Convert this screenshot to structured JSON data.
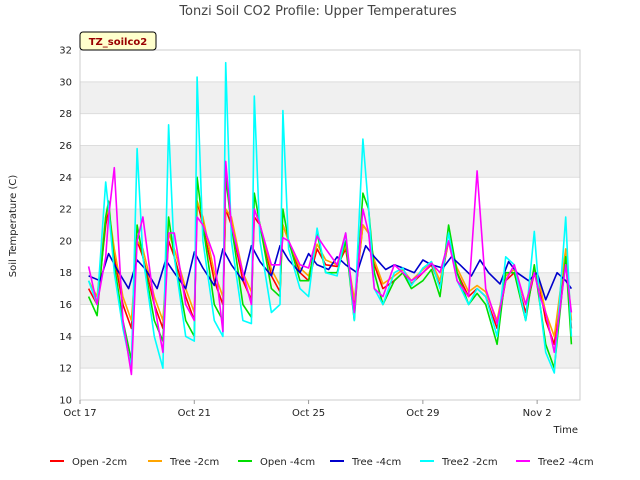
{
  "chart_data": {
    "type": "line",
    "title": "Tonzi Soil CO2 Profile: Upper Temperatures",
    "xlabel": "Time",
    "ylabel": "Soil Temperature (C)",
    "badge": "TZ_soilco2",
    "ylim": [
      10,
      32
    ],
    "yticks": [
      10,
      12,
      14,
      16,
      18,
      20,
      22,
      24,
      26,
      28,
      30,
      32
    ],
    "xlim": [
      0,
      17.5
    ],
    "xticks": [
      {
        "x": 0,
        "label": "Oct 17"
      },
      {
        "x": 4,
        "label": "Oct 21"
      },
      {
        "x": 8,
        "label": "Oct 25"
      },
      {
        "x": 12,
        "label": "Oct 29"
      },
      {
        "x": 16,
        "label": "Nov 2"
      }
    ],
    "grid": "horizontal bands",
    "legend": "bottom",
    "series": [
      {
        "name": "Open -2cm",
        "color": "#ff0000",
        "x": [
          0.3,
          0.6,
          0.9,
          1.0,
          1.2,
          1.5,
          1.8,
          2.0,
          2.2,
          2.6,
          2.9,
          3.1,
          3.3,
          3.7,
          4.0,
          4.1,
          4.3,
          4.7,
          5.0,
          5.1,
          5.3,
          5.7,
          6.0,
          6.1,
          6.3,
          6.7,
          7.0,
          7.1,
          7.3,
          7.7,
          8.0,
          8.3,
          8.6,
          9.0,
          9.3,
          9.6,
          9.9,
          10.1,
          10.3,
          10.6,
          11.0,
          11.3,
          11.6,
          12.0,
          12.3,
          12.6,
          12.9,
          13.2,
          13.6,
          13.9,
          14.2,
          14.6,
          14.9,
          15.2,
          15.6,
          15.9,
          16.1,
          16.3,
          16.6,
          17.0,
          17.2
        ],
        "y": [
          17,
          16,
          21,
          22,
          19,
          16,
          14.5,
          20,
          19,
          16,
          14.5,
          20,
          19,
          16.5,
          15,
          22.5,
          21,
          17.5,
          16,
          22,
          21,
          17.5,
          16.3,
          21.5,
          21,
          17.8,
          16.8,
          21,
          20,
          18,
          17.5,
          19.5,
          18.5,
          18.4,
          19.5,
          16,
          21,
          20.5,
          18.5,
          17,
          17.5,
          18,
          17.3,
          18,
          18.5,
          17.2,
          20,
          18,
          16.5,
          17,
          16.5,
          14.5,
          17.5,
          18,
          15.5,
          18,
          17,
          15,
          13.5,
          19,
          14.5
        ]
      },
      {
        "name": "Tree -2cm",
        "color": "#ffa500",
        "x": [
          0.3,
          0.6,
          0.9,
          1.0,
          1.2,
          1.5,
          1.8,
          2.0,
          2.2,
          2.6,
          2.9,
          3.1,
          3.3,
          3.7,
          4.0,
          4.1,
          4.3,
          4.7,
          5.0,
          5.1,
          5.3,
          5.7,
          6.0,
          6.1,
          6.3,
          6.7,
          7.0,
          7.1,
          7.3,
          7.7,
          8.0,
          8.3,
          8.6,
          9.0,
          9.3,
          9.6,
          9.9,
          10.1,
          10.3,
          10.6,
          11.0,
          11.3,
          11.6,
          12.0,
          12.3,
          12.6,
          12.9,
          13.2,
          13.6,
          13.9,
          14.2,
          14.6,
          14.9,
          15.2,
          15.6,
          15.9,
          16.1,
          16.3,
          16.6,
          17.0,
          17.2
        ],
        "y": [
          17.5,
          16.5,
          21.5,
          22,
          19.5,
          16.5,
          15,
          20,
          19.5,
          16.5,
          15,
          20.5,
          19.5,
          17,
          15.5,
          22.5,
          21.5,
          18,
          16.5,
          22,
          21.5,
          18,
          16.8,
          22,
          21,
          18.2,
          17.2,
          21,
          20,
          18.3,
          17.8,
          19.8,
          18.8,
          18.5,
          19.7,
          16.3,
          21,
          20.5,
          18.8,
          17.3,
          17.8,
          18.2,
          17.5,
          18.2,
          18.7,
          17.5,
          20,
          18.3,
          16.8,
          17.2,
          16.8,
          15,
          17.8,
          18.2,
          16,
          18.2,
          17.2,
          15.5,
          14,
          19.5,
          15
        ]
      },
      {
        "name": "Open -4cm",
        "color": "#00dd00",
        "x": [
          0.3,
          0.6,
          0.9,
          1.0,
          1.2,
          1.5,
          1.8,
          2.0,
          2.2,
          2.6,
          2.9,
          3.1,
          3.3,
          3.7,
          4.0,
          4.1,
          4.3,
          4.7,
          5.0,
          5.1,
          5.3,
          5.7,
          6.0,
          6.1,
          6.3,
          6.7,
          7.0,
          7.1,
          7.3,
          7.7,
          8.0,
          8.3,
          8.6,
          9.0,
          9.3,
          9.6,
          9.9,
          10.1,
          10.3,
          10.6,
          11.0,
          11.3,
          11.6,
          12.0,
          12.3,
          12.6,
          12.9,
          13.2,
          13.6,
          13.9,
          14.2,
          14.6,
          14.9,
          15.2,
          15.6,
          15.9,
          16.1,
          16.3,
          16.6,
          17.0,
          17.2
        ],
        "y": [
          16.5,
          15.3,
          21.5,
          22.5,
          18.5,
          15,
          12.5,
          21,
          19,
          15,
          13.7,
          21.5,
          19,
          15,
          14,
          24,
          21,
          16,
          15,
          24,
          21,
          16,
          15.2,
          23,
          21,
          17,
          16.5,
          22,
          20,
          17.5,
          17.5,
          20.5,
          18,
          18,
          20,
          15,
          23,
          22,
          18,
          16,
          17.5,
          18,
          17,
          17.5,
          18.2,
          16.5,
          21,
          18,
          16,
          16.7,
          16,
          13.5,
          18,
          18,
          15,
          18.5,
          16,
          13.5,
          12,
          19,
          13.5
        ]
      },
      {
        "name": "Tree -4cm",
        "color": "#0000cc",
        "x": [
          0.3,
          0.7,
          1.0,
          1.3,
          1.7,
          2.0,
          2.3,
          2.7,
          3.0,
          3.3,
          3.7,
          4.0,
          4.3,
          4.7,
          5.0,
          5.3,
          5.7,
          6.0,
          6.3,
          6.7,
          7.0,
          7.3,
          7.7,
          8.0,
          8.3,
          8.7,
          9.0,
          9.3,
          9.7,
          10.0,
          10.3,
          10.7,
          11.0,
          11.3,
          11.7,
          12.0,
          12.3,
          12.7,
          13.0,
          13.3,
          13.7,
          14.0,
          14.3,
          14.7,
          15.0,
          15.3,
          15.7,
          16.0,
          16.3,
          16.7,
          17.0,
          17.2
        ],
        "y": [
          17.8,
          17.5,
          19.2,
          18.2,
          17,
          18.8,
          18.2,
          17,
          18.8,
          18,
          17,
          19.3,
          18.3,
          17.2,
          19.5,
          18.5,
          17.5,
          19.7,
          18.7,
          17.8,
          19.7,
          18.8,
          18,
          19.2,
          18.5,
          18.2,
          19,
          18.5,
          18,
          19.7,
          19,
          18.2,
          18.5,
          18.3,
          18,
          18.8,
          18.5,
          18.3,
          19,
          18.5,
          17.8,
          18.8,
          18,
          17.3,
          18.7,
          18,
          17.5,
          18,
          16.3,
          18,
          17.5,
          17
        ]
      },
      {
        "name": "Tree2 -2cm",
        "color": "#00ffff",
        "x": [
          0.3,
          0.6,
          0.9,
          1.0,
          1.2,
          1.5,
          1.8,
          2.0,
          2.2,
          2.6,
          2.9,
          3.1,
          3.3,
          3.7,
          4.0,
          4.1,
          4.3,
          4.7,
          5.0,
          5.1,
          5.3,
          5.7,
          6.0,
          6.1,
          6.3,
          6.7,
          7.0,
          7.1,
          7.3,
          7.7,
          8.0,
          8.3,
          8.6,
          9.0,
          9.3,
          9.6,
          9.9,
          10.1,
          10.3,
          10.6,
          11.0,
          11.3,
          11.6,
          12.0,
          12.3,
          12.6,
          12.9,
          13.2,
          13.6,
          13.9,
          14.2,
          14.6,
          14.9,
          15.2,
          15.6,
          15.9,
          16.1,
          16.3,
          16.6,
          17.0,
          17.2
        ],
        "y": [
          17.5,
          16,
          23.7,
          22,
          18,
          14.5,
          12,
          25.8,
          19,
          14,
          12,
          27.3,
          19,
          14,
          13.7,
          30.3,
          20,
          15,
          14,
          31.2,
          20,
          15,
          14.8,
          29.1,
          20,
          15.5,
          16,
          28.2,
          19.5,
          17,
          16.5,
          20.8,
          18,
          17.8,
          20.5,
          15,
          26.4,
          22,
          17,
          16,
          18,
          18.3,
          17.2,
          18.3,
          18.7,
          17,
          20.5,
          17.5,
          16,
          17,
          16.5,
          14,
          19,
          18.5,
          15,
          20.6,
          16,
          13,
          11.7,
          21.5,
          14
        ]
      },
      {
        "name": "Tree2 -4cm",
        "color": "#ff00ff",
        "x": [
          0.3,
          0.6,
          0.9,
          1.0,
          1.2,
          1.5,
          1.8,
          2.0,
          2.2,
          2.6,
          2.9,
          3.1,
          3.3,
          3.7,
          4.0,
          4.1,
          4.3,
          4.7,
          5.0,
          5.1,
          5.3,
          5.7,
          6.0,
          6.1,
          6.3,
          6.7,
          7.0,
          7.1,
          7.3,
          7.7,
          8.0,
          8.3,
          8.6,
          9.0,
          9.3,
          9.6,
          9.9,
          10.1,
          10.3,
          10.6,
          11.0,
          11.3,
          11.6,
          12.0,
          12.3,
          12.6,
          12.9,
          13.2,
          13.6,
          13.9,
          14.2,
          14.6,
          14.9,
          15.2,
          15.6,
          15.9,
          16.1,
          16.3,
          16.6,
          17.0,
          17.2
        ],
        "y": [
          18.4,
          16,
          19,
          21.5,
          24.6,
          15,
          11.6,
          20,
          21.5,
          16,
          13,
          20.5,
          20.5,
          16,
          15,
          21.5,
          21,
          19,
          14.3,
          25,
          21,
          18,
          16,
          22,
          21,
          18.5,
          18.5,
          20.2,
          20,
          18.5,
          18.3,
          20.3,
          19.5,
          18.5,
          20.5,
          15.5,
          22,
          20.5,
          17,
          16.5,
          18.5,
          18,
          17.5,
          18,
          18.6,
          18,
          20,
          17.5,
          16.5,
          24.4,
          17,
          14.8,
          17.5,
          18.5,
          16,
          18,
          16.5,
          15.5,
          13,
          18.5,
          15.5
        ]
      }
    ]
  }
}
